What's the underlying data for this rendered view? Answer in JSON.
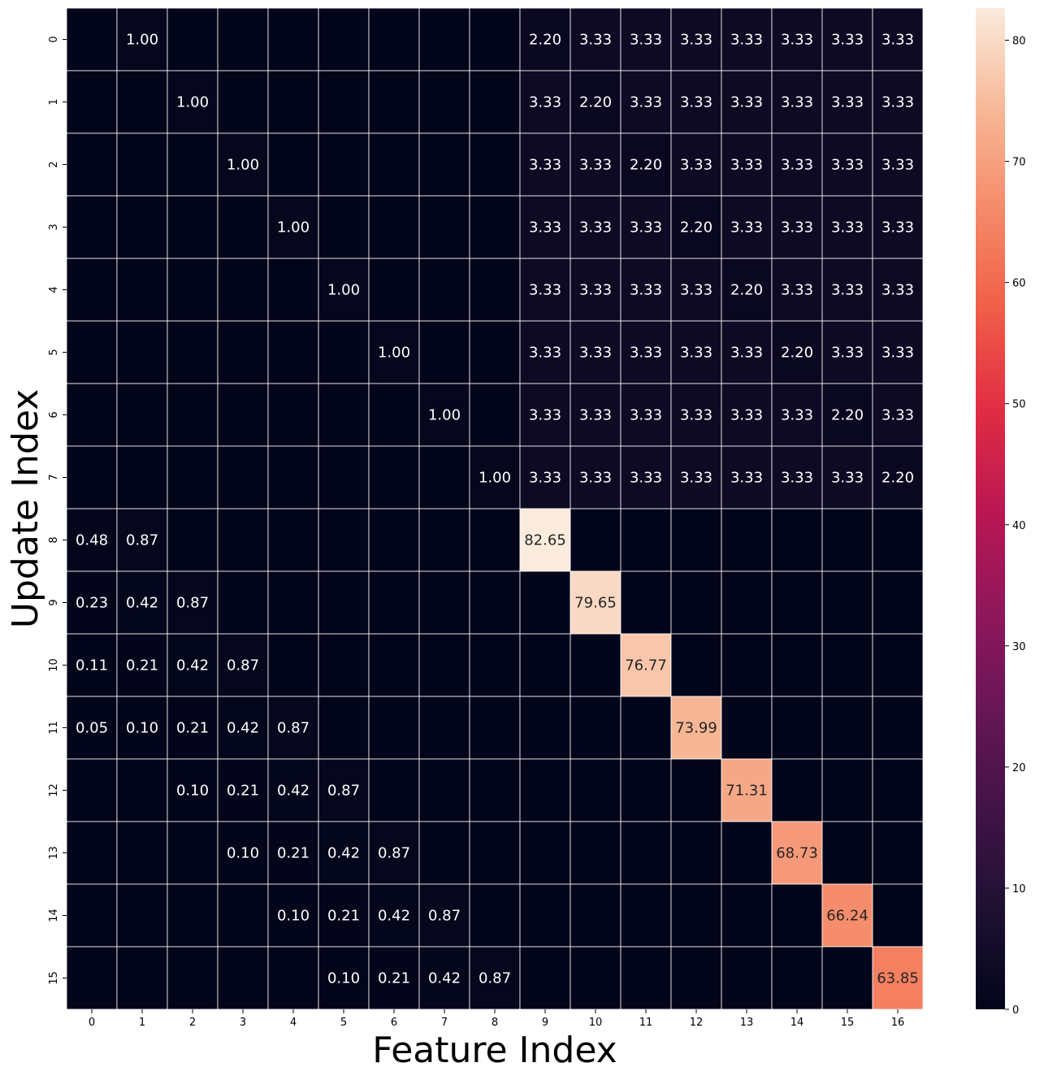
{
  "chart_data": {
    "type": "heatmap",
    "title": "",
    "xlabel": "Feature Index",
    "ylabel": "Update Index",
    "x_categories": [
      "0",
      "1",
      "2",
      "3",
      "4",
      "5",
      "6",
      "7",
      "8",
      "9",
      "10",
      "11",
      "12",
      "13",
      "14",
      "15",
      "16"
    ],
    "y_categories": [
      "0",
      "1",
      "2",
      "3",
      "4",
      "5",
      "6",
      "7",
      "8",
      "9",
      "10",
      "11",
      "12",
      "13",
      "14",
      "15"
    ],
    "values": [
      [
        0,
        1.0,
        0,
        0,
        0,
        0,
        0,
        0,
        0,
        2.2,
        3.33,
        3.33,
        3.33,
        3.33,
        3.33,
        3.33,
        3.33
      ],
      [
        0,
        0,
        1.0,
        0,
        0,
        0,
        0,
        0,
        0,
        3.33,
        2.2,
        3.33,
        3.33,
        3.33,
        3.33,
        3.33,
        3.33
      ],
      [
        0,
        0,
        0,
        1.0,
        0,
        0,
        0,
        0,
        0,
        3.33,
        3.33,
        2.2,
        3.33,
        3.33,
        3.33,
        3.33,
        3.33
      ],
      [
        0,
        0,
        0,
        0,
        1.0,
        0,
        0,
        0,
        0,
        3.33,
        3.33,
        3.33,
        2.2,
        3.33,
        3.33,
        3.33,
        3.33
      ],
      [
        0,
        0,
        0,
        0,
        0,
        1.0,
        0,
        0,
        0,
        3.33,
        3.33,
        3.33,
        3.33,
        2.2,
        3.33,
        3.33,
        3.33
      ],
      [
        0,
        0,
        0,
        0,
        0,
        0,
        1.0,
        0,
        0,
        3.33,
        3.33,
        3.33,
        3.33,
        3.33,
        2.2,
        3.33,
        3.33
      ],
      [
        0,
        0,
        0,
        0,
        0,
        0,
        0,
        1.0,
        0,
        3.33,
        3.33,
        3.33,
        3.33,
        3.33,
        3.33,
        2.2,
        3.33
      ],
      [
        0,
        0,
        0,
        0,
        0,
        0,
        0,
        0,
        1.0,
        3.33,
        3.33,
        3.33,
        3.33,
        3.33,
        3.33,
        3.33,
        2.2
      ],
      [
        0.48,
        0.87,
        0,
        0,
        0,
        0,
        0,
        0,
        0,
        82.65,
        0,
        0,
        0,
        0,
        0,
        0,
        0
      ],
      [
        0.23,
        0.42,
        0.87,
        0,
        0,
        0,
        0,
        0,
        0,
        0,
        79.65,
        0,
        0,
        0,
        0,
        0,
        0
      ],
      [
        0.11,
        0.21,
        0.42,
        0.87,
        0,
        0,
        0,
        0,
        0,
        0,
        0,
        76.77,
        0,
        0,
        0,
        0,
        0
      ],
      [
        0.05,
        0.1,
        0.21,
        0.42,
        0.87,
        0,
        0,
        0,
        0,
        0,
        0,
        0,
        73.99,
        0,
        0,
        0,
        0
      ],
      [
        0,
        0,
        0.1,
        0.21,
        0.42,
        0.87,
        0,
        0,
        0,
        0,
        0,
        0,
        0,
        71.31,
        0,
        0,
        0
      ],
      [
        0,
        0,
        0,
        0.1,
        0.21,
        0.42,
        0.87,
        0,
        0,
        0,
        0,
        0,
        0,
        0,
        68.73,
        0,
        0
      ],
      [
        0,
        0,
        0,
        0,
        0.1,
        0.21,
        0.42,
        0.87,
        0,
        0,
        0,
        0,
        0,
        0,
        0,
        66.24,
        0
      ],
      [
        0,
        0,
        0,
        0,
        0,
        0.1,
        0.21,
        0.42,
        0.87,
        0,
        0,
        0,
        0,
        0,
        0,
        0,
        63.85
      ]
    ],
    "annotation_format": "2 decimals, blank when zero",
    "colormap": "rocket",
    "vmin": 0,
    "vmax": 82.65,
    "colorbar_ticks": [
      "0",
      "10",
      "20",
      "30",
      "40",
      "50",
      "60",
      "70",
      "80"
    ],
    "colorbar_tick_values": [
      0,
      10,
      20,
      30,
      40,
      50,
      60,
      70,
      80
    ],
    "colorbar_position": "right",
    "cell_borders": "white",
    "grid": false
  }
}
